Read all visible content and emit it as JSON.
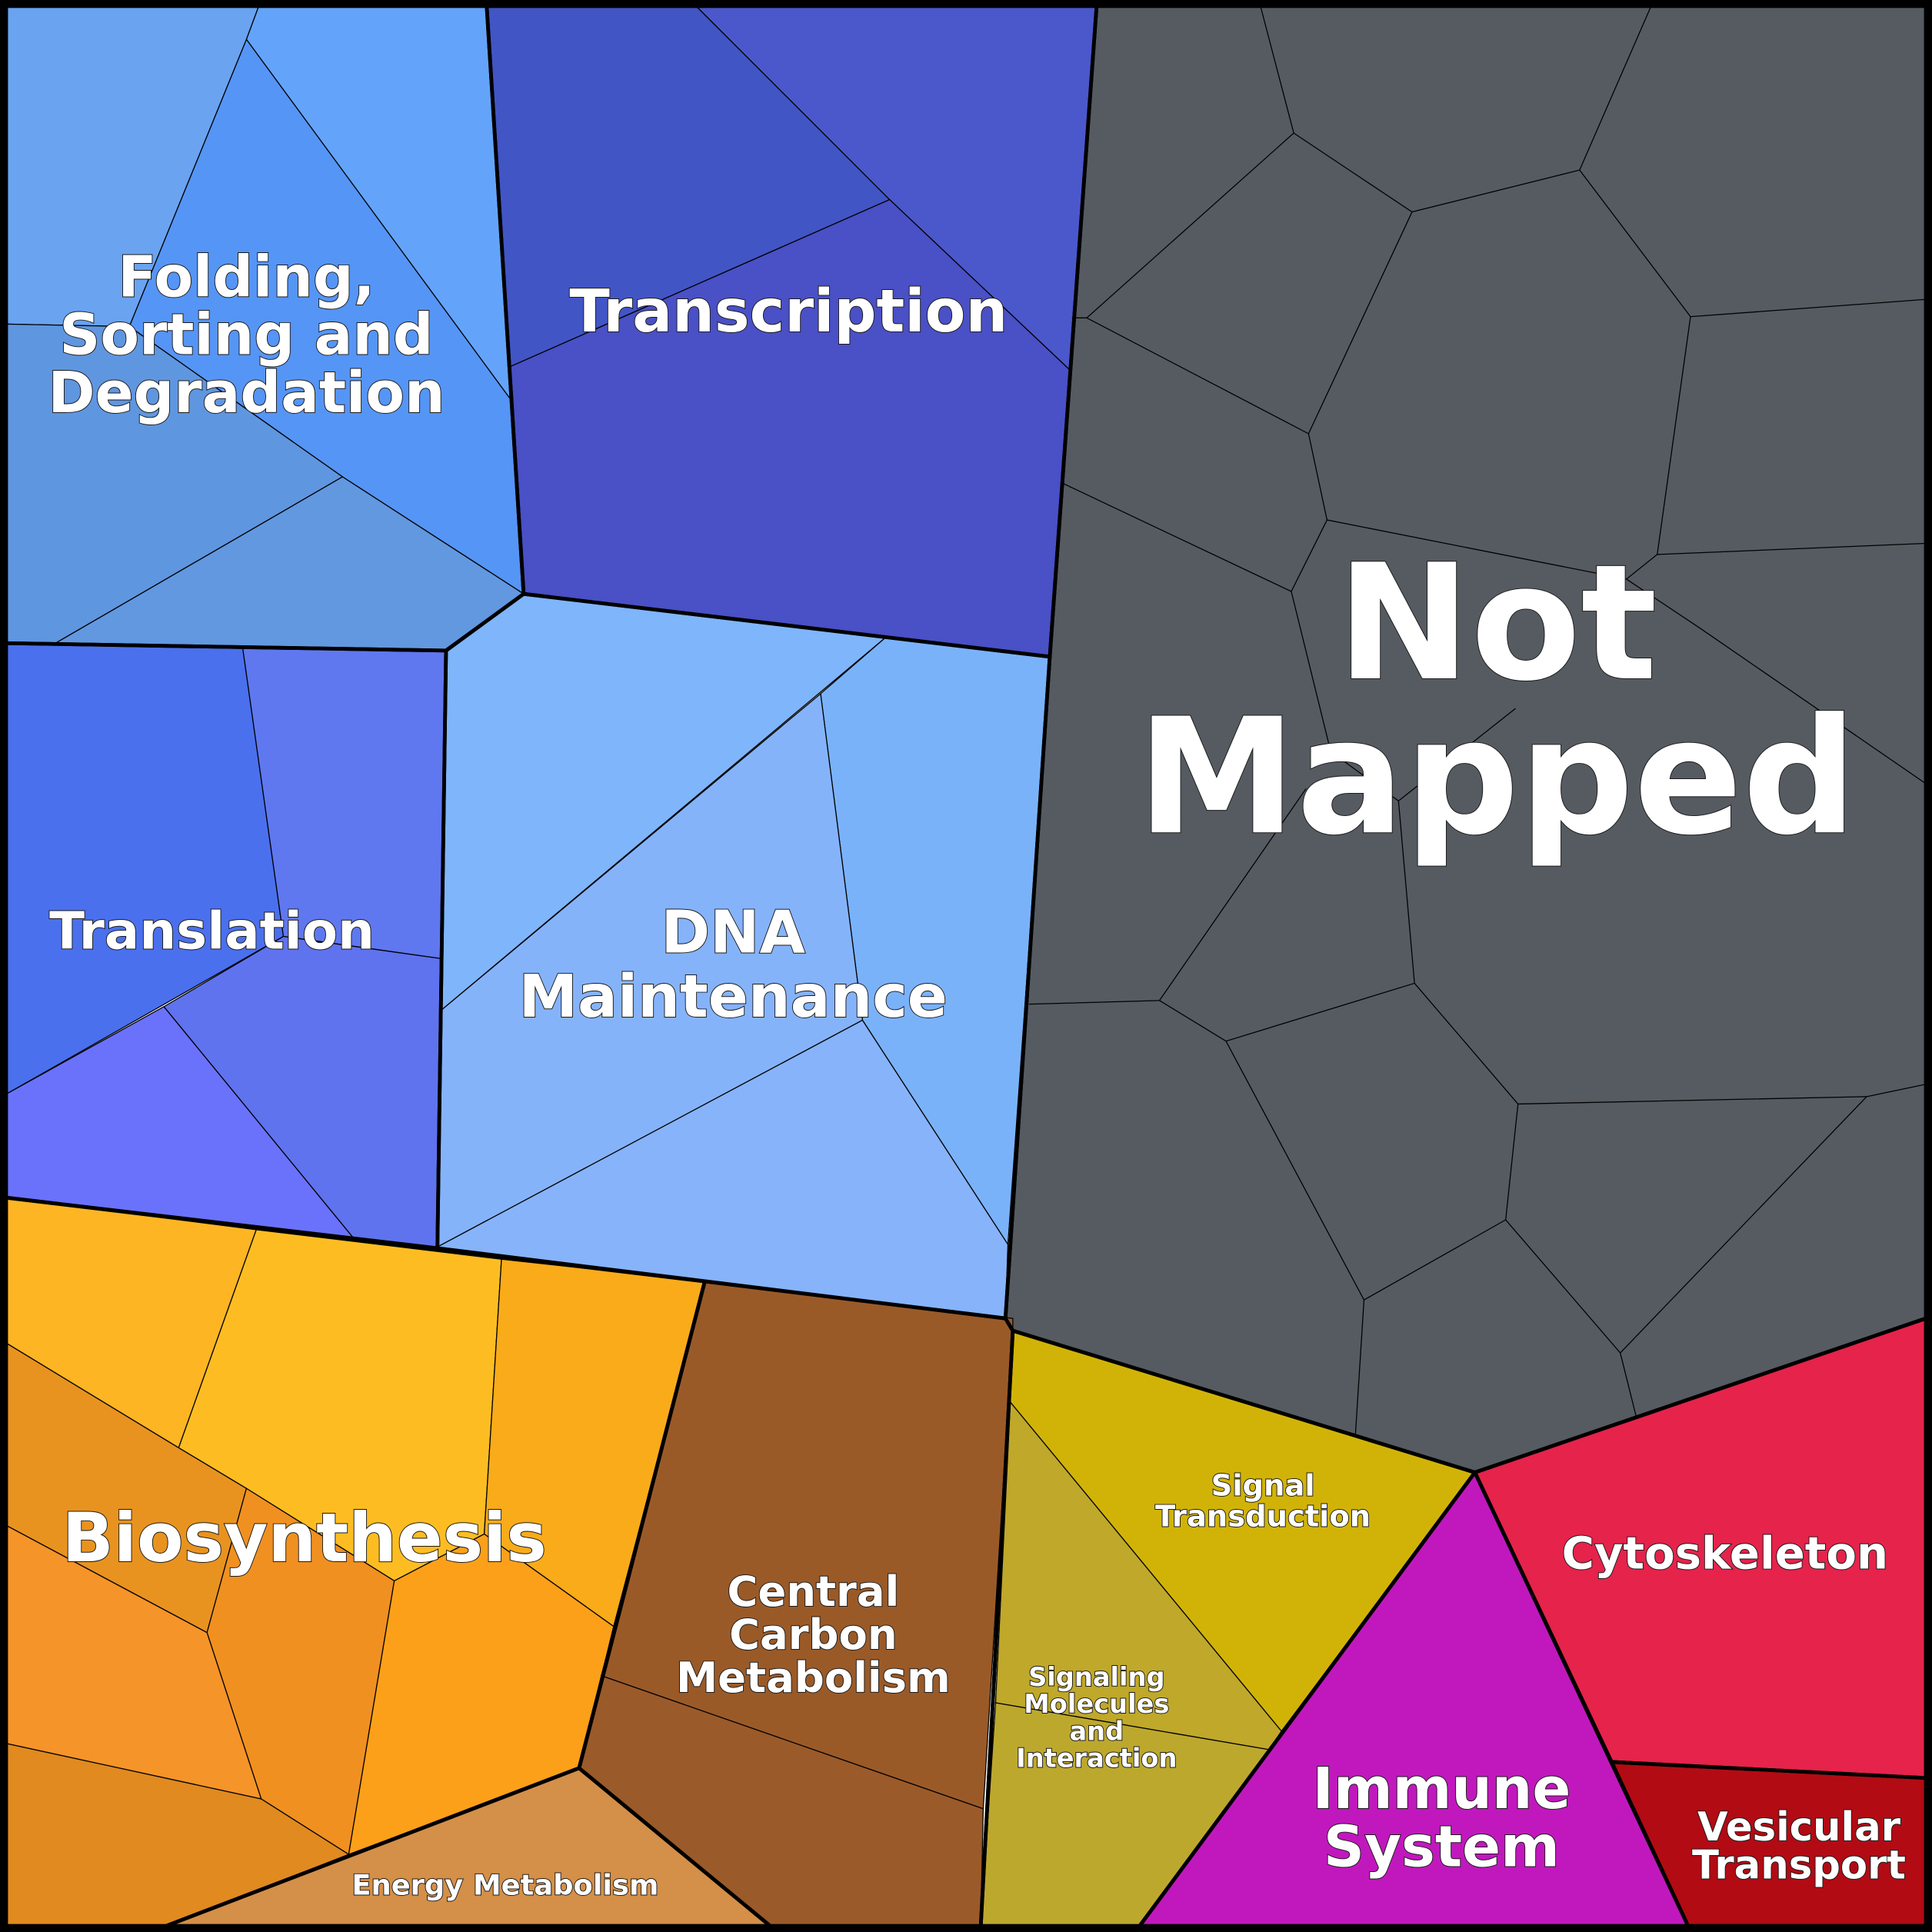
{
  "regions": [
    {
      "label_lines": [
        "Folding,",
        "Sorting and",
        "Degradation"
      ]
    },
    {
      "label_lines": [
        "Transcription"
      ]
    },
    {
      "label_lines": [
        "Not",
        "Mapped"
      ]
    },
    {
      "label_lines": [
        "Translation"
      ]
    },
    {
      "label_lines": [
        "DNA",
        "Maintenance"
      ]
    },
    {
      "label_lines": [
        "Biosynthesis"
      ]
    },
    {
      "label_lines": [
        "Central",
        "Carbon",
        "Metabolism"
      ]
    },
    {
      "label_lines": [
        "Energy Metabolism"
      ]
    },
    {
      "label_lines": [
        "Signal",
        "Transduction"
      ]
    },
    {
      "label_lines": [
        "Signaling",
        "Molecules",
        "and",
        "Interaction"
      ]
    },
    {
      "label_lines": [
        "Immune",
        "System"
      ]
    },
    {
      "label_lines": [
        "Cytoskeleton"
      ]
    },
    {
      "label_lines": [
        "Vesicular",
        "Transport"
      ]
    }
  ]
}
